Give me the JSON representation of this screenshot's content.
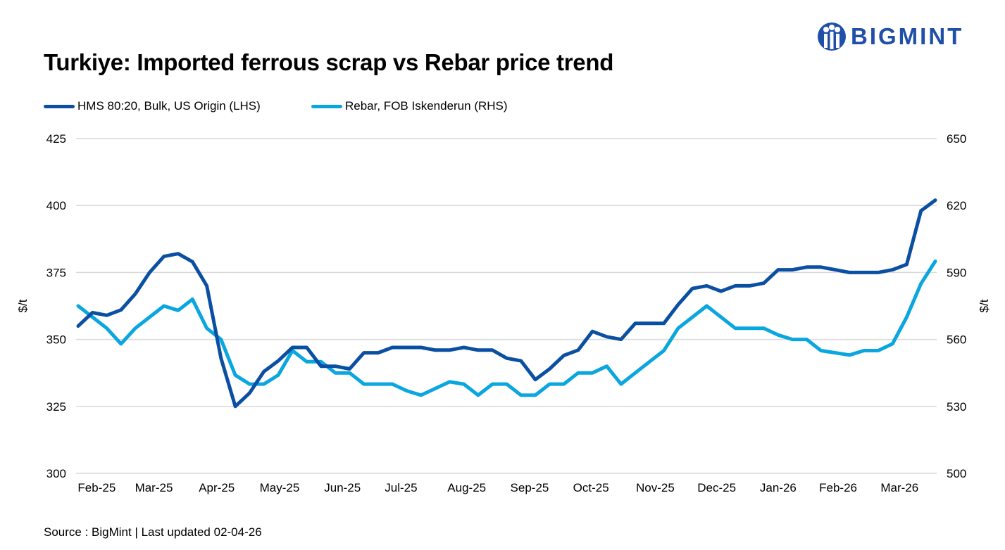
{
  "title": "Turkiye: Imported ferrous scrap vs Rebar price trend",
  "logo_text": "BIGMINT",
  "source": "Source : BigMint | Last updated 02-04-26",
  "colors": {
    "hms": "#0b4fa3",
    "rebar": "#0aa6e0",
    "grid": "#d9d9d9"
  },
  "chart_data": {
    "type": "line",
    "title": "Turkiye: Imported ferrous scrap vs Rebar price trend",
    "ylabel": "$/t",
    "ylabel_right": "$/t",
    "ylim": [
      300,
      425
    ],
    "ylim_right": [
      500,
      650
    ],
    "yticks": [
      300,
      325,
      350,
      375,
      400,
      425
    ],
    "yticks_right": [
      500,
      530,
      560,
      590,
      620,
      650
    ],
    "grid": true,
    "legend_position": "top-left",
    "x_tick_labels": [
      "Feb-25",
      "Mar-25",
      "Apr-25",
      "May-25",
      "Jun-25",
      "Jul-25",
      "Aug-25",
      "Sep-25",
      "Oct-25",
      "Nov-25",
      "Dec-25",
      "Jan-26",
      "Feb-26",
      "Mar-26"
    ],
    "series": [
      {
        "name": "HMS 80:20, Bulk, US Origin (LHS)",
        "axis": "left",
        "values": [
          355,
          360,
          359,
          361,
          367,
          375,
          381,
          382,
          379,
          370,
          343,
          325,
          330,
          338,
          342,
          347,
          347,
          340,
          340,
          339,
          345,
          345,
          347,
          347,
          347,
          346,
          346,
          347,
          346,
          346,
          343,
          342,
          335,
          339,
          344,
          346,
          353,
          351,
          350,
          356,
          356,
          356,
          363,
          369,
          370,
          368,
          370,
          370,
          371,
          376,
          376,
          377,
          377,
          376,
          375,
          375,
          375,
          376,
          378,
          398,
          402
        ]
      },
      {
        "name": "Rebar, FOB Iskenderun (RHS)",
        "axis": "right",
        "values": [
          575,
          570,
          565,
          558,
          565,
          570,
          575,
          573,
          578,
          565,
          560,
          544,
          540,
          540,
          544,
          555,
          550,
          550,
          545,
          545,
          540,
          540,
          540,
          537,
          535,
          538,
          541,
          540,
          535,
          540,
          540,
          535,
          535,
          540,
          540,
          545,
          545,
          548,
          540,
          545,
          550,
          555,
          565,
          570,
          575,
          570,
          565,
          565,
          565,
          562,
          560,
          560,
          555,
          554,
          553,
          555,
          555,
          558,
          570,
          585,
          595
        ]
      }
    ]
  }
}
